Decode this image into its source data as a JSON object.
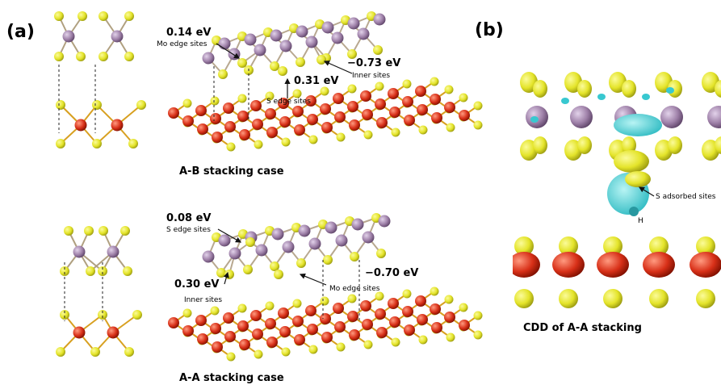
{
  "panels": [
    {
      "label": "(a)",
      "cases": [
        {
          "caption": "A-B stacking case",
          "annotations": [
            {
              "energy": "0.14 eV",
              "site": "Mo edge sites"
            },
            {
              "energy": "−0.73 eV",
              "site": "Inner sites"
            },
            {
              "energy": "0.31 eV",
              "site": "S edge sites"
            }
          ]
        },
        {
          "caption": "A-A stacking case",
          "annotations": [
            {
              "energy": "0.08 eV",
              "site": "S edge sites"
            },
            {
              "energy": "0.30 eV",
              "site": "Inner sites"
            },
            {
              "energy": "−0.70 eV",
              "site": "Mo edge sites"
            }
          ]
        }
      ]
    },
    {
      "label": "(b)",
      "annotations": [
        "S adsorbed sites",
        "H"
      ],
      "caption": "CDD of A-A stacking"
    }
  ]
}
